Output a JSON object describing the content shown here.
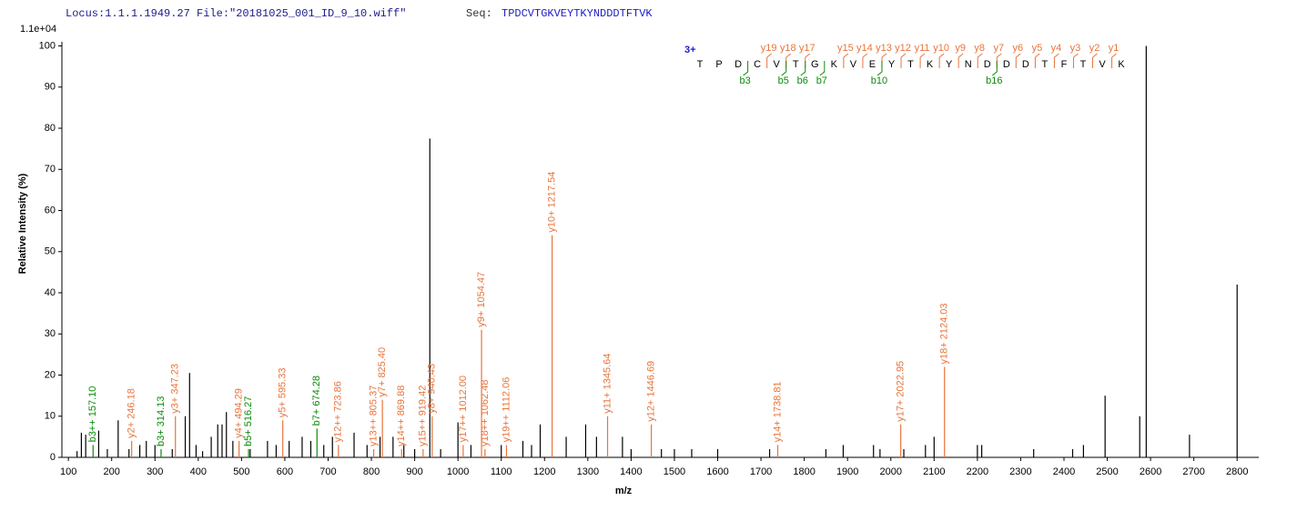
{
  "chart_data": {
    "type": "spectrum",
    "locus": "Locus:1.1.1.1949.27 File:\"20181025_001_ID_9_10.wiff\"",
    "seq_label": "Seq:",
    "sequence": "TPDCVTGKVEYTKYNDDDTFTVK",
    "scale_label": "1.1e+04",
    "x_label": "m/z",
    "y_label": "Relative   Intensity (%)",
    "xlim": [
      85,
      2850
    ],
    "ylim": [
      0,
      101
    ],
    "xticks": [
      100,
      200,
      300,
      400,
      500,
      600,
      700,
      800,
      900,
      1000,
      1100,
      1200,
      1300,
      1400,
      1500,
      1600,
      1700,
      1800,
      1900,
      2000,
      2100,
      2200,
      2300,
      2400,
      2500,
      2600,
      2700,
      2800
    ],
    "yticks": [
      0,
      10,
      20,
      30,
      40,
      50,
      60,
      70,
      80,
      90,
      100
    ],
    "series": [
      {
        "color": "#000000",
        "x": [
          120,
          130,
          140,
          170,
          190,
          215,
          240,
          265,
          280,
          300,
          340,
          370,
          380,
          395,
          410,
          430,
          445,
          455,
          465,
          480,
          520,
          560,
          580,
          610,
          640,
          660,
          690,
          710,
          760,
          790,
          820,
          850,
          875,
          900,
          935,
          960,
          1000,
          1030,
          1100,
          1150,
          1170,
          1190,
          1250,
          1295,
          1320,
          1380,
          1400,
          1470,
          1500,
          1540,
          1600,
          1720,
          1850,
          1890,
          1960,
          1975,
          2030,
          2080,
          2100,
          2200,
          2210,
          2330,
          2420,
          2445,
          2495,
          2575,
          2590,
          2690,
          2800
        ],
        "values": [
          1.5,
          6,
          5.5,
          6.5,
          2,
          9,
          2,
          3,
          4,
          3,
          2,
          10,
          20.5,
          3,
          1.5,
          5,
          8,
          8,
          11,
          4,
          2,
          4,
          3,
          4,
          5,
          4,
          3,
          5,
          6,
          3,
          5,
          5,
          3,
          2,
          77.5,
          2,
          8.5,
          3,
          3,
          4,
          3,
          8,
          5,
          8,
          5,
          5,
          2,
          2,
          2,
          2,
          2,
          2,
          2,
          3,
          3,
          2,
          2,
          3,
          5,
          3,
          3,
          2,
          2,
          3,
          15,
          10,
          100,
          5.5,
          42
        ]
      },
      {
        "color": "#e8743b",
        "x": [
          246.18,
          347.23,
          494.29,
          595.33,
          723.86,
          805.37,
          825.4,
          869.88,
          919.42,
          940.43,
          1012.0,
          1054.47,
          1062.48,
          1112.06,
          1217.54,
          1345.64,
          1446.69,
          1738.81,
          2022.95,
          2124.03
        ],
        "values": [
          4,
          10,
          4,
          9,
          3,
          2,
          14,
          2,
          2,
          10,
          3,
          31,
          2,
          3,
          54,
          10,
          8,
          3,
          8,
          22
        ],
        "labels": [
          "y2+ 246.18",
          "y3+ 347.23",
          "y4+ 494.29",
          "y5+ 595.33",
          "y12++ 723.86",
          "y13++ 805.37",
          "y7+ 825.40",
          "y14++ 869.88",
          "y15++ 919.42",
          "y8+ 940.43",
          "y17++ 1012.00",
          "y9+ 1054.47",
          "y18++ 1062.48",
          "y19++ 1112.06",
          "y10+ 1217.54",
          "y11+ 1345.64",
          "y12+ 1446.69",
          "y14+ 1738.81",
          "y17+ 2022.95",
          "y18+ 2124.03"
        ]
      },
      {
        "color": "#0a8a0a",
        "x": [
          157.1,
          314.13,
          516.27,
          674.28
        ],
        "values": [
          3,
          2,
          2,
          7
        ],
        "labels": [
          "b3++ 157.10",
          "b3+ 314.13",
          "b5+ 516.27",
          "b7+ 674.28"
        ]
      }
    ],
    "annotation": {
      "charge": "3+",
      "residues": [
        "T",
        "P",
        "D",
        "C",
        "V",
        "T",
        "G",
        "K",
        "V",
        "E",
        "Y",
        "T",
        "K",
        "Y",
        "N",
        "D",
        "D",
        "D",
        "T",
        "F",
        "T",
        "V",
        "K"
      ],
      "y_ions": [
        null,
        null,
        null,
        "y19",
        "y18",
        "y17",
        null,
        "y15",
        "y14",
        "y13",
        "y12",
        "y11",
        "y10",
        "y9",
        "y8",
        "y7",
        "y6",
        "y5",
        "y4",
        "y3",
        "y2",
        "y1"
      ],
      "b_ions": [
        null,
        null,
        "b3",
        null,
        "b5",
        "b6",
        "b7",
        null,
        null,
        "b10",
        null,
        null,
        null,
        null,
        null,
        "b16",
        null,
        null,
        null,
        null,
        null,
        null
      ]
    }
  }
}
